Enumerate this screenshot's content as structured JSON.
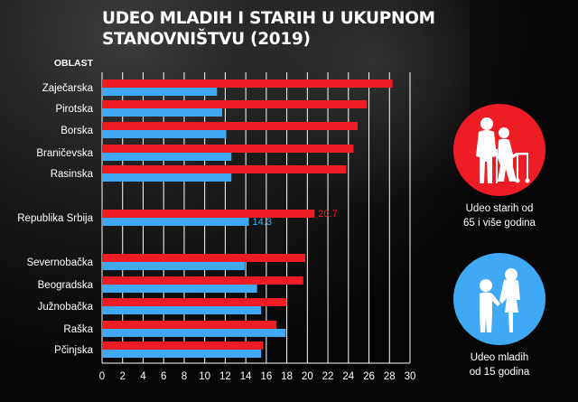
{
  "title": {
    "line1": "UDEO MLADIH I STARIH U UKUPNOM",
    "line2": "STANOVNIŠTVU (2019)"
  },
  "colors": {
    "old": "#ee1c25",
    "young": "#3fa9f5",
    "grid": "#ffffff",
    "text": "#ffffff"
  },
  "legend": {
    "old": {
      "line1": "Udeo starih od",
      "line2": "65 i više godina",
      "icon": "elderly-couple-icon",
      "color": "#ee1c25"
    },
    "young": {
      "line1": "Udeo mladih",
      "line2": "od 15 godina",
      "icon": "children-icon",
      "color": "#3fa9f5"
    }
  },
  "chart_data": {
    "type": "bar",
    "orientation": "horizontal",
    "category_header": "OBLAST",
    "categories": [
      "Zaječarska",
      "Pirotska",
      "Borska",
      "Braničevska",
      "Rasinska",
      "Republika Srbija",
      "Severnobačka",
      "Beogradska",
      "Južnobačka",
      "Raška",
      "Pčinjska"
    ],
    "series": [
      {
        "name": "Udeo starih od 65 i više godina",
        "color": "#ee1c25",
        "values": [
          28.3,
          25.8,
          24.9,
          24.5,
          23.8,
          20.7,
          19.8,
          19.6,
          18.0,
          17.0,
          15.7
        ]
      },
      {
        "name": "Udeo mladih od 15 godina",
        "color": "#3fa9f5",
        "values": [
          11.2,
          11.7,
          12.1,
          12.6,
          12.6,
          14.3,
          13.9,
          15.1,
          15.5,
          17.9,
          15.5
        ]
      }
    ],
    "data_labels": [
      {
        "category": "Republika Srbija",
        "series": 0,
        "text": "20.7"
      },
      {
        "category": "Republika Srbija",
        "series": 1,
        "text": "14.3"
      }
    ],
    "xticks": [
      "0",
      "2",
      "4",
      "6",
      "8",
      "10",
      "12",
      "14",
      "16",
      "18",
      "20",
      "22",
      "24",
      "26",
      "28",
      "30"
    ],
    "xlim": [
      0,
      30
    ],
    "grid": true
  }
}
